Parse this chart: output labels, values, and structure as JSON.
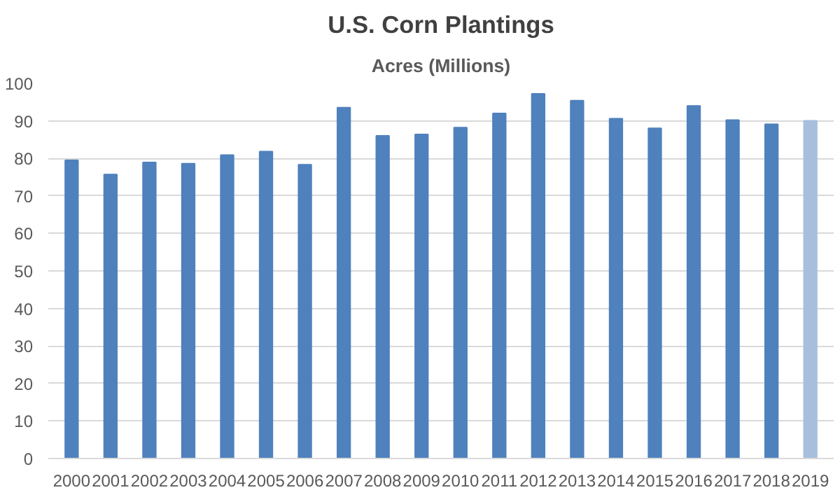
{
  "chart_data": {
    "type": "bar",
    "title": "U.S. Corn Plantings",
    "subtitle": "Acres (Millions)",
    "categories": [
      "2000",
      "2001",
      "2002",
      "2003",
      "2004",
      "2005",
      "2006",
      "2007",
      "2008",
      "2009",
      "2010",
      "2011",
      "2012",
      "2013",
      "2014",
      "2015",
      "2016",
      "2017",
      "2018",
      "2019"
    ],
    "values": [
      79.5,
      75.7,
      78.9,
      78.6,
      80.9,
      81.8,
      78.3,
      93.5,
      86.0,
      86.4,
      88.2,
      92.0,
      97.2,
      95.4,
      90.6,
      88.0,
      94.0,
      90.2,
      89.1,
      90.0
    ],
    "colors": [
      "#4f81bd",
      "#4f81bd",
      "#4f81bd",
      "#4f81bd",
      "#4f81bd",
      "#4f81bd",
      "#4f81bd",
      "#4f81bd",
      "#4f81bd",
      "#4f81bd",
      "#4f81bd",
      "#4f81bd",
      "#4f81bd",
      "#4f81bd",
      "#4f81bd",
      "#4f81bd",
      "#4f81bd",
      "#4f81bd",
      "#4f81bd",
      "#a7bfdd"
    ],
    "ylim": [
      0,
      100
    ],
    "yticks": [
      0,
      10,
      20,
      30,
      40,
      50,
      60,
      70,
      80,
      90,
      100
    ],
    "grid": "y"
  }
}
